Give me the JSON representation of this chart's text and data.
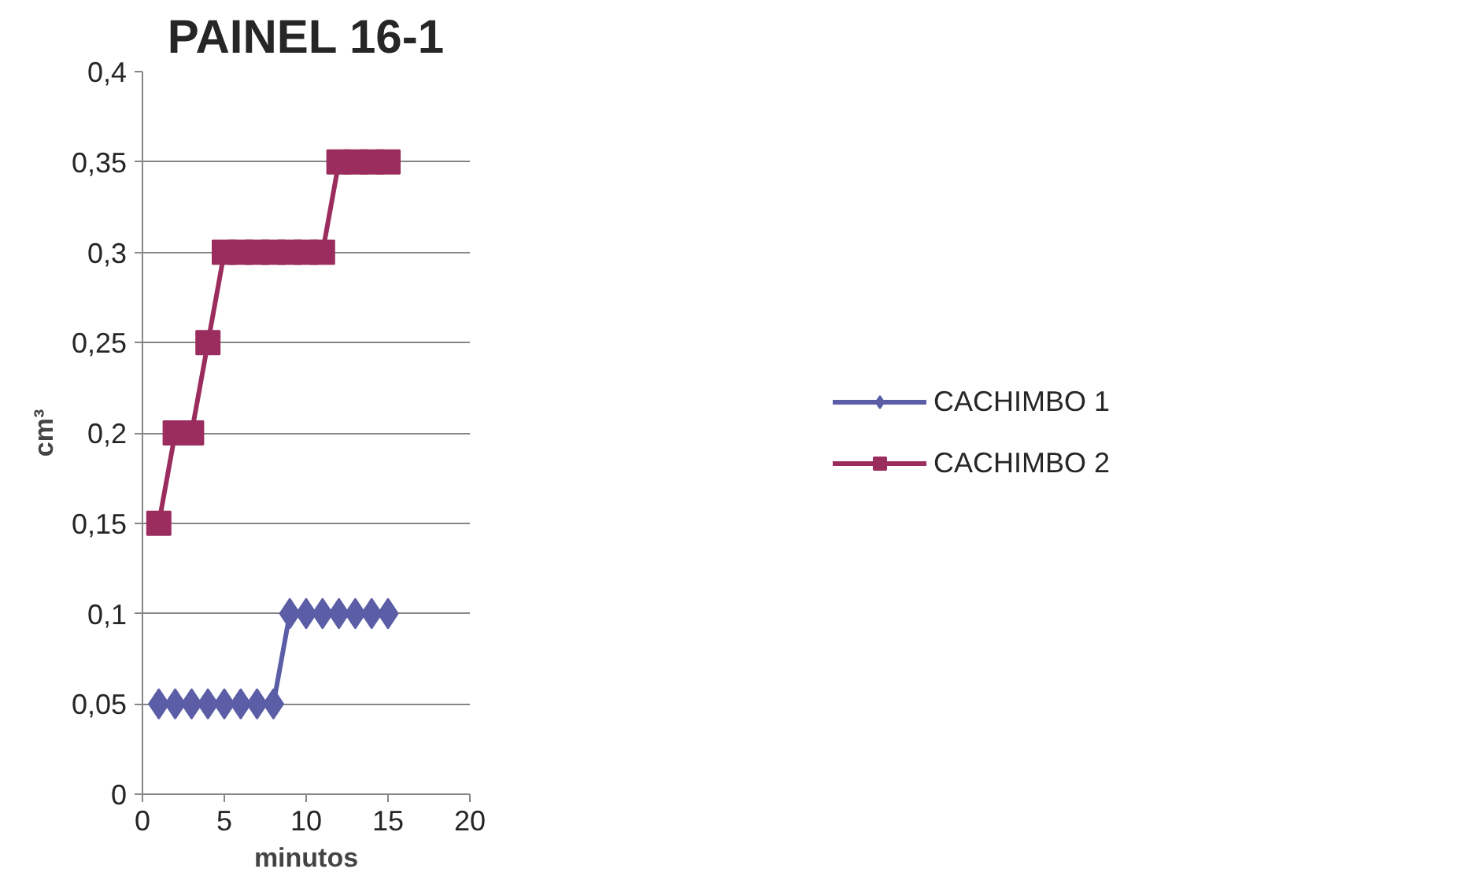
{
  "chart_data": {
    "type": "line",
    "title": "PAINEL 16-1",
    "xlabel": "minutos",
    "ylabel": "cm³",
    "x": [
      1,
      2,
      3,
      4,
      5,
      6,
      7,
      8,
      9,
      10,
      11,
      12,
      13,
      14,
      15
    ],
    "series": [
      {
        "name": "CACHIMBO 1",
        "color": "#5b5ea6",
        "marker": "diamond",
        "values": [
          0.05,
          0.05,
          0.05,
          0.05,
          0.05,
          0.05,
          0.05,
          0.05,
          0.1,
          0.1,
          0.1,
          0.1,
          0.1,
          0.1,
          0.1
        ]
      },
      {
        "name": "CACHIMBO 2",
        "color": "#9b2d5e",
        "marker": "square",
        "values": [
          0.15,
          0.2,
          0.2,
          0.25,
          0.3,
          0.3,
          0.3,
          0.3,
          0.3,
          0.3,
          0.3,
          0.35,
          0.35,
          0.35,
          0.35
        ]
      }
    ],
    "xlim": [
      0,
      20
    ],
    "xticks": [
      0,
      5,
      10,
      15,
      20
    ],
    "ylim": [
      0,
      0.4
    ],
    "yticks": [
      0,
      {
        "value": 0.05,
        "label": "0,05"
      },
      {
        "value": 0.1,
        "label": "0,1"
      },
      {
        "value": 0.15,
        "label": "0,15"
      },
      {
        "value": 0.2,
        "label": "0,2"
      },
      {
        "value": 0.25,
        "label": "0,25"
      },
      {
        "value": 0.3,
        "label": "0,3"
      },
      {
        "value": 0.35,
        "label": "0,35"
      },
      {
        "value": 0.4,
        "label": "0,4"
      }
    ],
    "grid": "y",
    "legend": "right",
    "line_style": "solid"
  }
}
